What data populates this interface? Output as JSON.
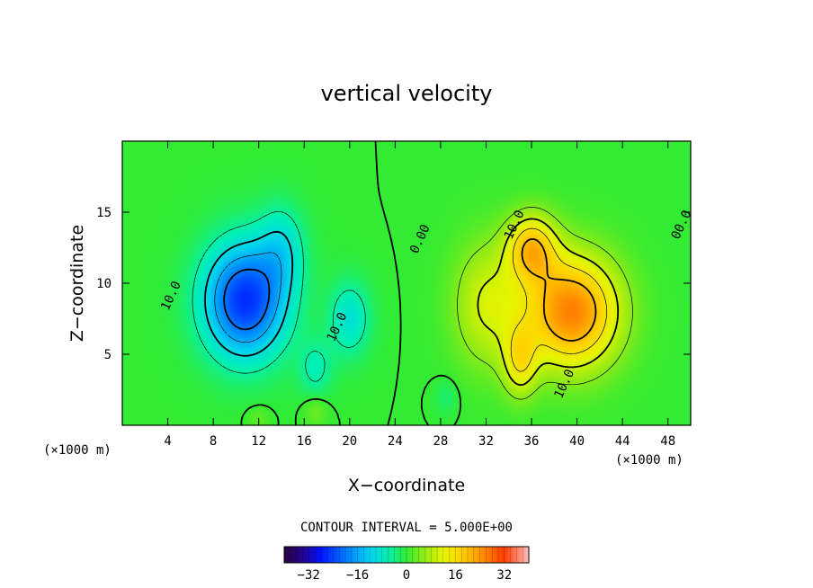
{
  "chart_data": {
    "type": "heatmap",
    "title": "vertical velocity",
    "xlabel": "X−coordinate",
    "ylabel": "Z−coordinate",
    "x_unit_left": "(×1000 m)",
    "x_unit_right": "(×1000 m)",
    "xlim": [
      0,
      50
    ],
    "ylim": [
      0,
      20
    ],
    "x_ticks": [
      4,
      8,
      12,
      16,
      20,
      24,
      28,
      32,
      36,
      40,
      44,
      48
    ],
    "x_tick_labels": [
      "4",
      "8",
      "12",
      "16",
      "20",
      "24",
      "28",
      "32",
      "36",
      "40",
      "44",
      "48"
    ],
    "y_ticks": [
      5,
      10,
      15
    ],
    "y_tick_labels": [
      "5",
      "10",
      "15"
    ],
    "contour_interval_label": "CONTOUR INTERVAL = 5.000E+00",
    "contour_labels": [
      {
        "text": "10.0",
        "x": 4.6,
        "y": 9.0
      },
      {
        "text": "10.0",
        "x": 19.2,
        "y": 6.8
      },
      {
        "text": "0.00",
        "x": 26.5,
        "y": 13.0
      },
      {
        "text": "10.0",
        "x": 34.8,
        "y": 14.0
      },
      {
        "text": "10.0",
        "x": 39.2,
        "y": 2.8
      },
      {
        "text": "00.0",
        "x": 49.5,
        "y": 14.0
      }
    ],
    "colorbar": {
      "min": -40,
      "max": 40,
      "ticks": [
        -32,
        -16,
        0,
        16,
        32
      ],
      "tick_labels": [
        "−32",
        "−16",
        "0",
        "16",
        "32"
      ]
    },
    "features": [
      {
        "type": "min",
        "x": 10.8,
        "y": 8.8,
        "value": -26,
        "sx": 3.6,
        "sy": 4.0
      },
      {
        "type": "min",
        "x": 14.0,
        "y": 12.5,
        "value": -8,
        "sx": 2.0,
        "sy": 3.0
      },
      {
        "type": "min",
        "x": 20.0,
        "y": 7.5,
        "value": -9,
        "sx": 1.8,
        "sy": 2.6
      },
      {
        "type": "min",
        "x": 17.0,
        "y": 4.0,
        "value": -6,
        "sx": 1.5,
        "sy": 2.0
      },
      {
        "type": "max",
        "x": 39.5,
        "y": 8.0,
        "value": 26,
        "sx": 4.2,
        "sy": 4.0
      },
      {
        "type": "max",
        "x": 36.0,
        "y": 12.5,
        "value": 18,
        "sx": 2.2,
        "sy": 2.4
      },
      {
        "type": "max",
        "x": 35.0,
        "y": 4.5,
        "value": 12,
        "sx": 1.5,
        "sy": 2.5
      },
      {
        "type": "max",
        "x": 32.0,
        "y": 8.5,
        "value": 10,
        "sx": 3.0,
        "sy": 4.5
      },
      {
        "type": "min",
        "x": 28.5,
        "y": 2.0,
        "value": -3,
        "sx": 1.0,
        "sy": 1.2
      },
      {
        "type": "max",
        "x": 17.0,
        "y": 1.0,
        "value": 4,
        "sx": 1.0,
        "sy": 1.0
      },
      {
        "type": "max",
        "x": 12.0,
        "y": 0.5,
        "value": 3,
        "sx": 1.0,
        "sy": 0.8
      }
    ],
    "grid": false,
    "legend": "colorbar-bottom"
  }
}
